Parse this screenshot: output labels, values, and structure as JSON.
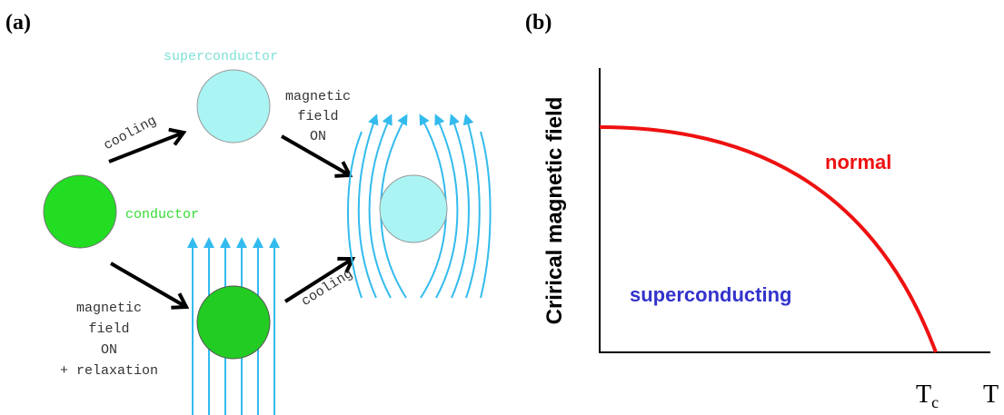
{
  "panel_a": {
    "label": "(a)",
    "superconductor": "superconductor",
    "conductor": "conductor",
    "cooling_top": "cooling",
    "cooling_bottom": "cooling",
    "field_on_top": [
      "magnetic",
      "field",
      "ON"
    ],
    "field_on_bottom": [
      "magnetic",
      "field",
      "ON",
      "+ relaxation"
    ]
  },
  "panel_b": {
    "label": "(b)",
    "y_axis_label": "Crirical magnetic field",
    "normal": "normal",
    "superconducting": "superconducting",
    "tc_main": "T",
    "tc_sub": "c",
    "t_axis": "T"
  }
}
